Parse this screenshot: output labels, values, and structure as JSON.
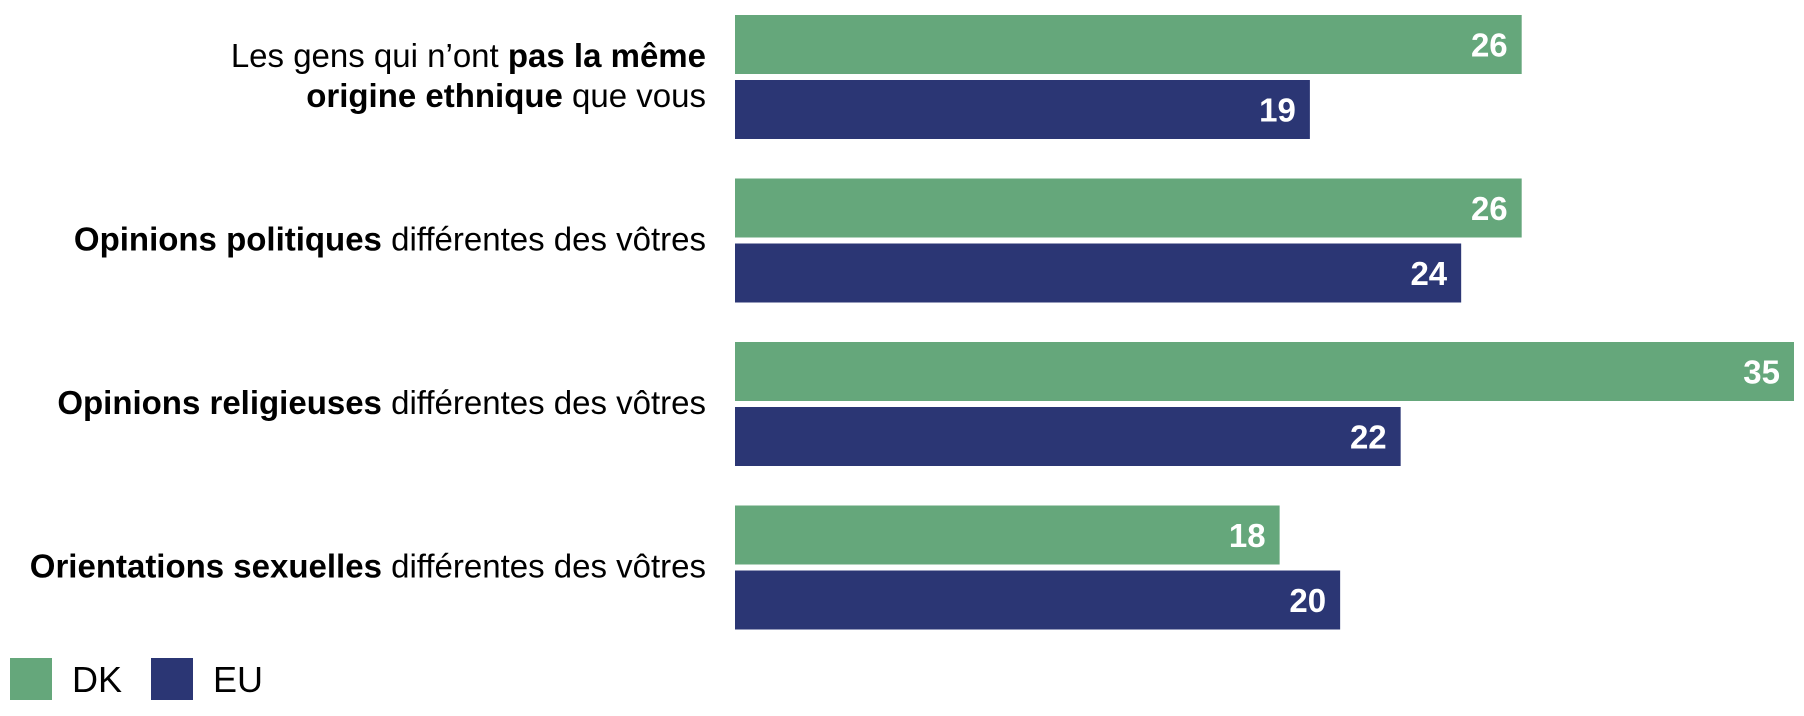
{
  "chart_data": {
    "type": "bar",
    "orientation": "horizontal",
    "categories": [
      [
        {
          "t": "Les gens qui n’ont ",
          "b": false
        },
        {
          "t": "pas la même",
          "b": true
        },
        {
          "t": "\n",
          "b": false
        },
        {
          "t": "origine ethnique",
          "b": true
        },
        {
          "t": " que vous",
          "b": false
        }
      ],
      [
        {
          "t": "Opinions politiques",
          "b": true
        },
        {
          "t": " différentes des vôtres",
          "b": false
        }
      ],
      [
        {
          "t": "Opinions religieuses",
          "b": true
        },
        {
          "t": " différentes des vôtres",
          "b": false
        }
      ],
      [
        {
          "t": "Orientations sexuelles",
          "b": true
        },
        {
          "t": " différentes des vôtres",
          "b": false
        }
      ]
    ],
    "series": [
      {
        "name": "DK",
        "color": "#65a77b",
        "values": [
          26,
          26,
          35,
          18
        ]
      },
      {
        "name": "EU",
        "color": "#2b3674",
        "values": [
          19,
          24,
          22,
          20
        ]
      }
    ],
    "xlim": [
      0,
      35
    ],
    "legend": "bottom-left",
    "grid": false
  }
}
